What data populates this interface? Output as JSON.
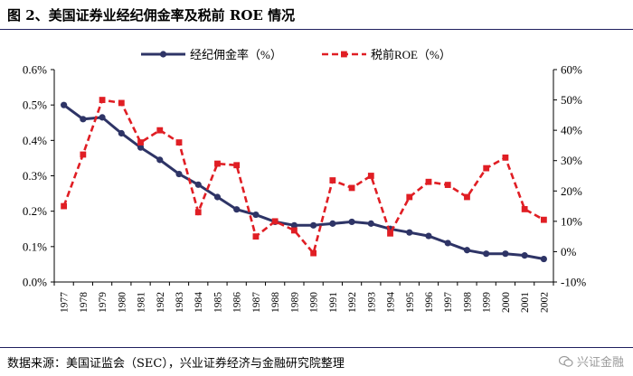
{
  "title": "图 2、美国证券业经纪佣金率及税前 ROE 情况",
  "source": "数据来源：美国证监会（SEC），兴业证券经济与金融研究院整理",
  "watermark": {
    "text": "兴证金融",
    "icon": "wechat-icon"
  },
  "colors": {
    "commission": "#2e3466",
    "roe": "#e01e24",
    "rule": "#1f1f5e"
  },
  "chart_data": {
    "type": "line",
    "categories": [
      "1977",
      "1978",
      "1979",
      "1980",
      "1981",
      "1982",
      "1983",
      "1984",
      "1985",
      "1986",
      "1987",
      "1988",
      "1989",
      "1990",
      "1991",
      "1992",
      "1993",
      "1994",
      "1995",
      "1996",
      "1997",
      "1998",
      "1999",
      "2000",
      "2001",
      "2002"
    ],
    "series": [
      {
        "name": "经纪佣金率（%）",
        "axis": "left",
        "values": [
          0.5,
          0.46,
          0.465,
          0.42,
          0.38,
          0.345,
          0.305,
          0.275,
          0.24,
          0.205,
          0.19,
          0.17,
          0.16,
          0.16,
          0.165,
          0.17,
          0.165,
          0.15,
          0.14,
          0.13,
          0.11,
          0.09,
          0.08,
          0.08,
          0.075,
          0.065
        ]
      },
      {
        "name": "税前ROE（%）",
        "axis": "right",
        "values": [
          15,
          32,
          50,
          49,
          36,
          40,
          36,
          13,
          29,
          28.5,
          5,
          10,
          7,
          -0.5,
          23.5,
          21,
          25,
          6,
          18,
          23,
          22,
          18,
          27.5,
          31,
          14,
          10.5
        ]
      }
    ],
    "left_axis": {
      "ticks": [
        "0.0%",
        "0.1%",
        "0.2%",
        "0.3%",
        "0.4%",
        "0.5%",
        "0.6%"
      ],
      "ylim": [
        0,
        0.6
      ]
    },
    "right_axis": {
      "ticks": [
        "-10%",
        "0%",
        "10%",
        "20%",
        "30%",
        "40%",
        "50%",
        "60%"
      ],
      "ylim": [
        -10,
        60
      ]
    },
    "legend_position": "top-center",
    "xlabel": "",
    "ylabel": ""
  }
}
